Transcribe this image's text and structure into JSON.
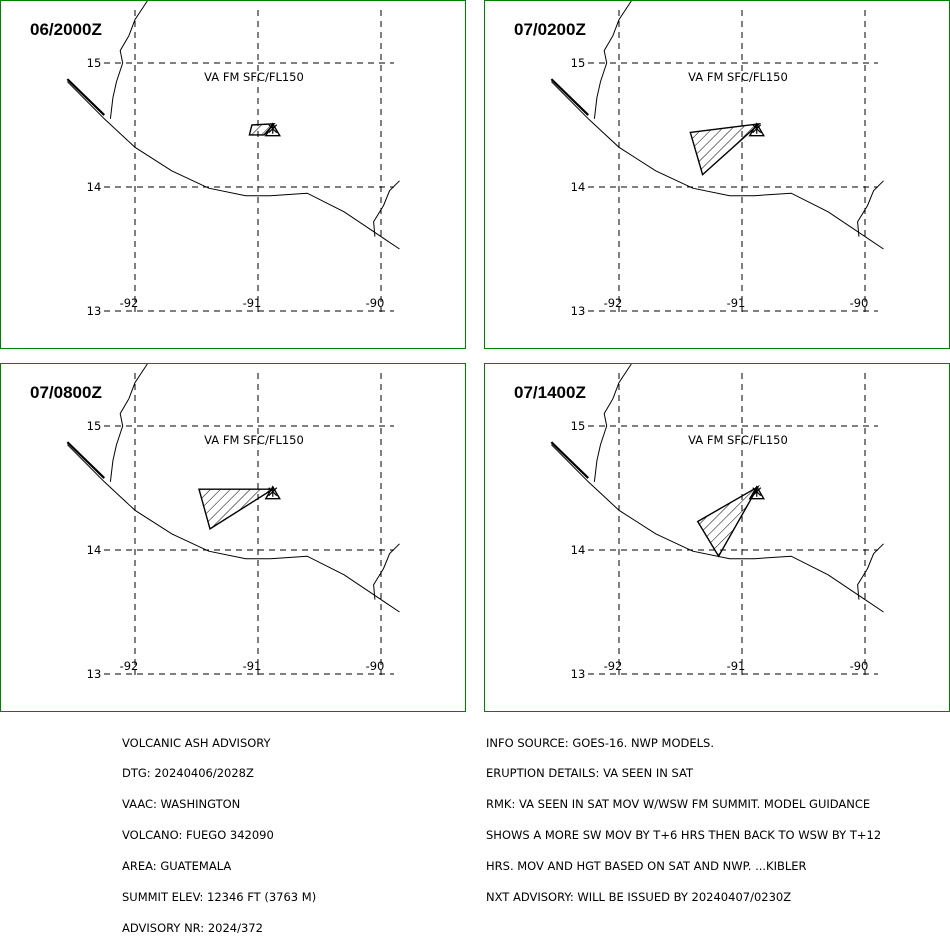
{
  "panels": [
    {
      "time_label": "06/2000Z",
      "va_label": "VA FM SFC/FL150",
      "ash_polygon": [
        [
          -91.05,
          14.5
        ],
        [
          -90.87,
          14.51
        ],
        [
          -90.95,
          14.42
        ],
        [
          -91.07,
          14.42
        ]
      ]
    },
    {
      "time_label": "07/0200Z",
      "va_label": "VA FM SFC/FL150",
      "ash_polygon": [
        [
          -91.42,
          14.44
        ],
        [
          -90.86,
          14.51
        ],
        [
          -91.32,
          14.1
        ]
      ]
    },
    {
      "time_label": "07/0800Z",
      "va_label": "VA FM SFC/FL150",
      "ash_polygon": [
        [
          -91.48,
          14.49
        ],
        [
          -90.88,
          14.49
        ],
        [
          -91.39,
          14.17
        ]
      ]
    },
    {
      "time_label": "07/1400Z",
      "va_label": "VA FM SFC/FL150",
      "ash_polygon": [
        [
          -90.87,
          14.51
        ],
        [
          -91.36,
          14.23
        ],
        [
          -91.19,
          13.95
        ]
      ]
    }
  ],
  "volcano": {
    "lon": -90.88,
    "lat": 14.47
  },
  "map": {
    "lat_ticks": [
      "15",
      "14",
      "13"
    ],
    "lon_ticks": [
      "-92",
      "-91",
      "-90"
    ],
    "lat_values": [
      15,
      14,
      13
    ],
    "lon_values": [
      -92,
      -91,
      -90
    ],
    "coastline": [
      [
        -92.55,
        14.85
      ],
      [
        -92.25,
        14.55
      ],
      [
        -92.0,
        14.32
      ],
      [
        -91.7,
        14.13
      ],
      [
        -91.4,
        13.99
      ],
      [
        -91.1,
        13.93
      ],
      [
        -90.9,
        13.93
      ],
      [
        -90.6,
        13.95
      ],
      [
        -90.3,
        13.8
      ],
      [
        -90.0,
        13.6
      ],
      [
        -89.85,
        13.5
      ]
    ],
    "country_border": [
      [
        -91.9,
        15.5
      ],
      [
        -92.0,
        15.35
      ],
      [
        -92.05,
        15.22
      ],
      [
        -92.12,
        15.1
      ],
      [
        -92.1,
        15.0
      ],
      [
        -92.15,
        14.85
      ],
      [
        -92.18,
        14.72
      ],
      [
        -92.2,
        14.55
      ]
    ],
    "east_border": [
      [
        -90.05,
        13.6
      ],
      [
        -90.06,
        13.72
      ],
      [
        -89.98,
        13.85
      ],
      [
        -89.93,
        13.97
      ],
      [
        -89.85,
        14.05
      ]
    ],
    "colors": {
      "frame": "#008000",
      "line": "#000000"
    }
  },
  "advisory_left": [
    "VOLCANIC ASH ADVISORY",
    "DTG: 20240406/2028Z",
    "VAAC: WASHINGTON",
    "VOLCANO: FUEGO 342090",
    "AREA: GUATEMALA",
    "SUMMIT ELEV: 12346 FT (3763 M)",
    "ADVISORY NR: 2024/372"
  ],
  "advisory_right": [
    "INFO SOURCE: GOES-16. NWP MODELS.",
    "ERUPTION DETAILS: VA SEEN IN SAT",
    "RMK: VA SEEN IN SAT MOV W/WSW FM SUMMIT. MODEL GUIDANCE",
    "SHOWS A MORE SW MOV BY T+6 HRS THEN BACK TO WSW BY T+12",
    "HRS. MOV AND HGT BASED ON SAT AND NWP. ...KIBLER",
    "NXT ADVISORY: WILL BE ISSUED BY 20240407/0230Z"
  ]
}
